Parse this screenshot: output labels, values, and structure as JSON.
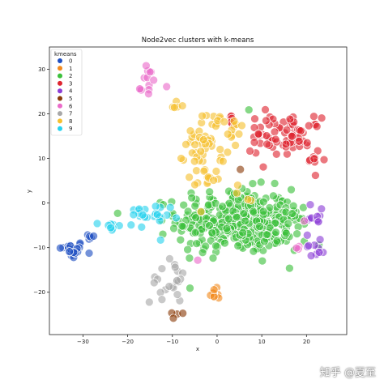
{
  "watermark": "知乎 @夏至",
  "chart_data": {
    "type": "scatter",
    "title": "Node2vec clusters with k-means",
    "xlabel": "x",
    "ylabel": "y",
    "xlim": [
      -37.5,
      29
    ],
    "ylim": [
      -29.5,
      35
    ],
    "xticks": [
      -30,
      -20,
      -10,
      0,
      10,
      20
    ],
    "yticks": [
      -20,
      -10,
      0,
      10,
      20,
      30
    ],
    "grid": false,
    "legend": {
      "title": "kmeans",
      "placement": "top-left"
    },
    "series": [
      {
        "name": "0",
        "color": "#1f4fc1",
        "clusters": [
          {
            "cx": -32.5,
            "cy": -10.5,
            "sx": 1.4,
            "sy": 1.0,
            "n": 26
          },
          {
            "cx": -28.5,
            "cy": -8.0,
            "sx": 0.8,
            "sy": 0.6,
            "n": 5
          }
        ]
      },
      {
        "name": "1",
        "color": "#f28a1f",
        "clusters": [
          {
            "cx": 0,
            "cy": -20,
            "sx": 1.0,
            "sy": 0.8,
            "n": 9
          }
        ]
      },
      {
        "name": "2",
        "color": "#3cc03c",
        "clusters": [
          {
            "cx": 4,
            "cy": -4,
            "sx": 6.5,
            "sy": 3.6,
            "n": 330
          },
          {
            "cx": 13,
            "cy": -6,
            "sx": 3.5,
            "sy": 3.0,
            "n": 60
          },
          {
            "cx": 7,
            "cy": 20,
            "sx": 0.5,
            "sy": 0.5,
            "n": 1
          }
        ]
      },
      {
        "name": "3",
        "color": "#de2530",
        "clusters": [
          {
            "cx": 18,
            "cy": 15.5,
            "sx": 2.5,
            "sy": 1.8,
            "n": 45
          },
          {
            "cx": 11,
            "cy": 14,
            "sx": 2.5,
            "sy": 3.5,
            "n": 30
          },
          {
            "cx": 22,
            "cy": 9.5,
            "sx": 1.0,
            "sy": 1.2,
            "n": 8
          },
          {
            "cx": 3,
            "cy": 18.5,
            "sx": 1.0,
            "sy": 0.8,
            "n": 5
          }
        ]
      },
      {
        "name": "4",
        "color": "#8d3fd6",
        "clusters": [
          {
            "cx": 22.5,
            "cy": -2.5,
            "sx": 1.0,
            "sy": 1.2,
            "n": 10
          },
          {
            "cx": 22,
            "cy": -9.5,
            "sx": 1.0,
            "sy": 1.4,
            "n": 10
          }
        ]
      },
      {
        "name": "5",
        "color": "#8b3c0a",
        "clusters": [
          {
            "cx": -8.5,
            "cy": -25.5,
            "sx": 1.2,
            "sy": 0.8,
            "n": 4
          },
          {
            "cx": 4,
            "cy": 7,
            "sx": 0.4,
            "sy": 0.4,
            "n": 1
          }
        ]
      },
      {
        "name": "6",
        "color": "#ea6bc9",
        "clusters": [
          {
            "cx": -15.5,
            "cy": 28.5,
            "sx": 0.7,
            "sy": 1.1,
            "n": 8
          },
          {
            "cx": -16.5,
            "cy": 25,
            "sx": 0.6,
            "sy": 0.8,
            "n": 5
          },
          {
            "cx": -11.5,
            "cy": 25.5,
            "sx": 0.3,
            "sy": 0.3,
            "n": 1
          },
          {
            "cx": 18.5,
            "cy": -9.5,
            "sx": 0.6,
            "sy": 0.6,
            "n": 3
          },
          {
            "cx": 19.5,
            "cy": -4,
            "sx": 0.4,
            "sy": 0.4,
            "n": 1
          },
          {
            "cx": -4.5,
            "cy": -13,
            "sx": 0.3,
            "sy": 0.3,
            "n": 1
          }
        ]
      },
      {
        "name": "7",
        "color": "#a8a8a8",
        "clusters": [
          {
            "cx": -11,
            "cy": -17.5,
            "sx": 2.0,
            "sy": 2.5,
            "n": 22
          }
        ]
      },
      {
        "name": "8",
        "color": "#f5c02f",
        "clusters": [
          {
            "cx": -2.5,
            "cy": 13.5,
            "sx": 2.2,
            "sy": 4.0,
            "n": 50
          },
          {
            "cx": -9.5,
            "cy": 22,
            "sx": 0.6,
            "sy": 1.0,
            "n": 5
          },
          {
            "cx": 3.5,
            "cy": 16.5,
            "sx": 1.6,
            "sy": 1.2,
            "n": 12
          },
          {
            "cx": 6.5,
            "cy": 2.5,
            "sx": 1.0,
            "sy": 1.0,
            "n": 4
          },
          {
            "cx": -1.5,
            "cy": 5.5,
            "sx": 2.5,
            "sy": 1.5,
            "n": 10
          }
        ]
      },
      {
        "name": "9",
        "color": "#27d2ee",
        "clusters": [
          {
            "cx": -17,
            "cy": -3.5,
            "sx": 3.2,
            "sy": 1.6,
            "n": 24
          },
          {
            "cx": -22.5,
            "cy": -5.5,
            "sx": 1.8,
            "sy": 0.8,
            "n": 8
          }
        ]
      }
    ]
  }
}
